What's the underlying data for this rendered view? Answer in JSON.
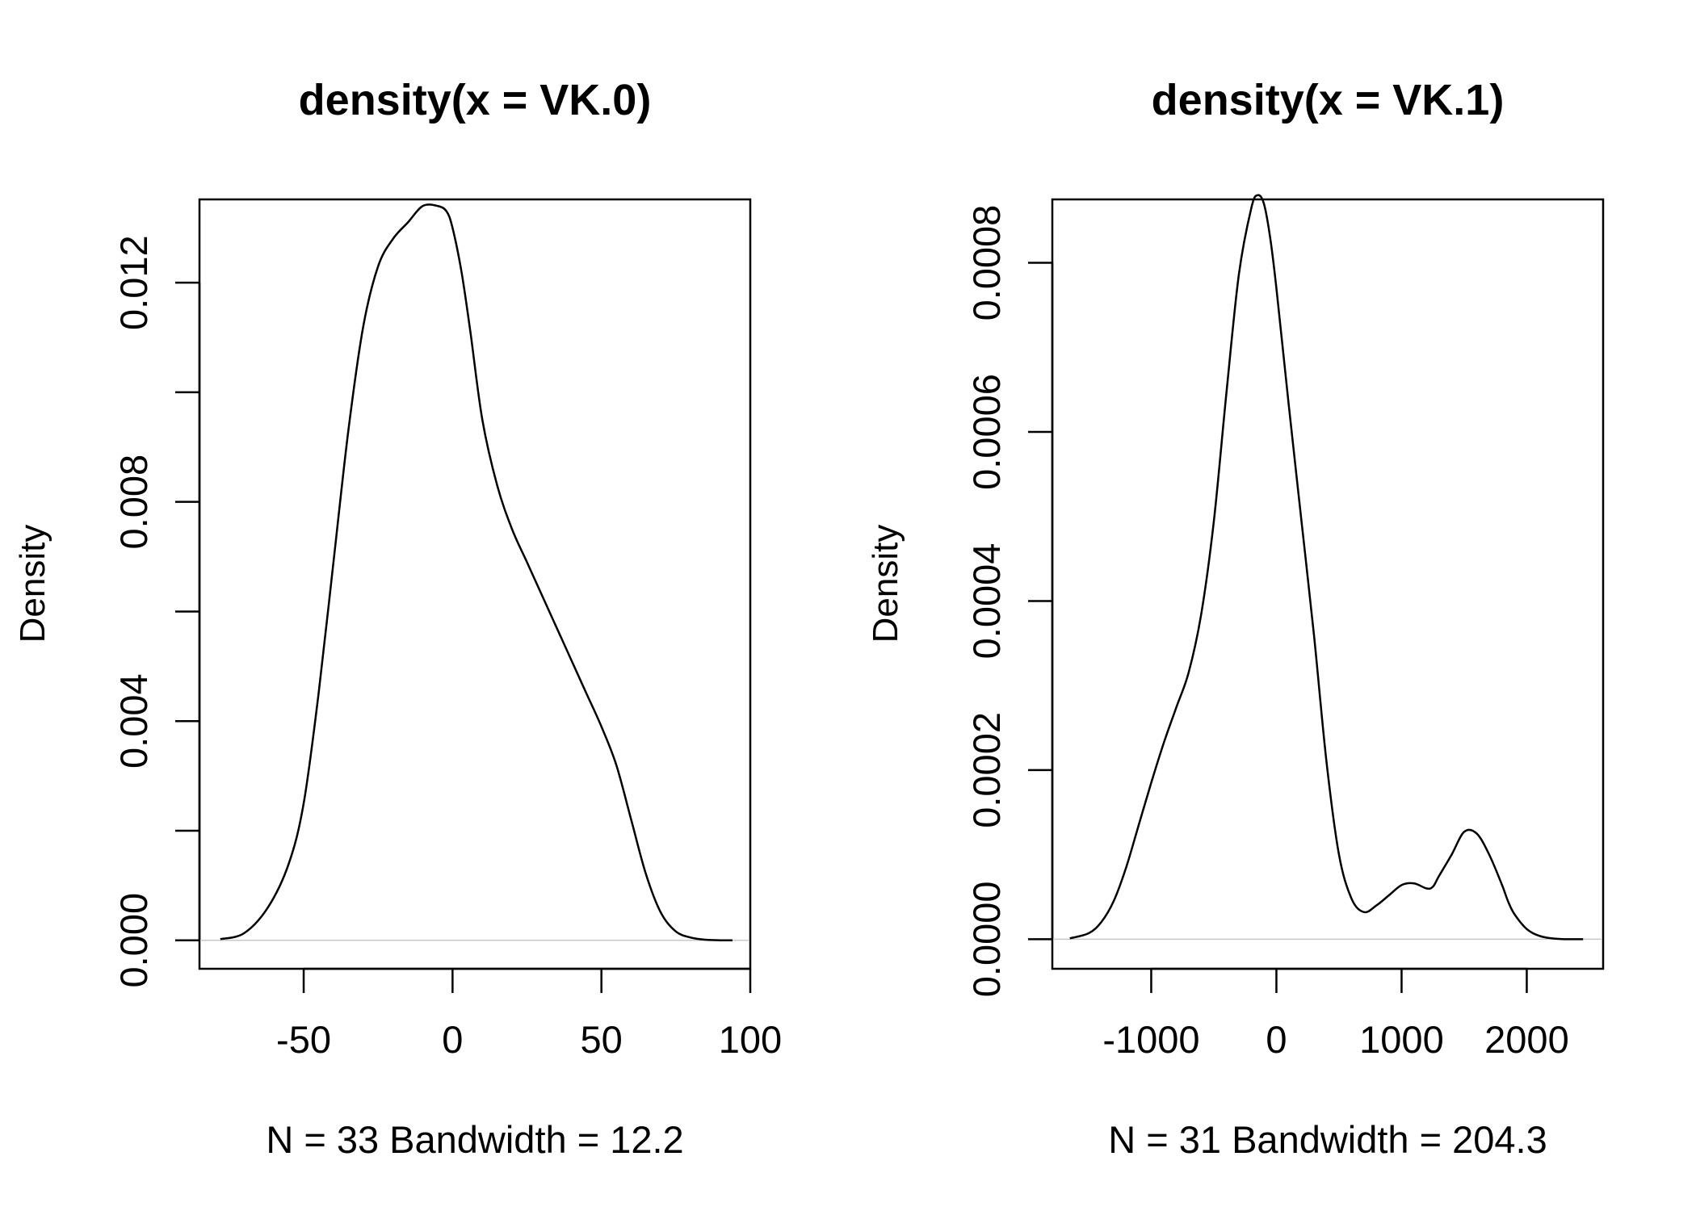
{
  "chart_data": [
    {
      "type": "line",
      "title": "density(x = VK.0)",
      "xlabel": "N = 33   Bandwidth = 12.2",
      "ylabel": "Density",
      "xlim": [
        -85,
        100
      ],
      "ylim": [
        -0.00052,
        0.01352
      ],
      "x_ticks": [
        -50,
        0,
        50,
        100
      ],
      "x_tick_labels": [
        "-50",
        "0",
        "50",
        "100"
      ],
      "y_ticks": [
        0,
        0.002,
        0.004,
        0.006,
        0.008,
        0.01,
        0.012
      ],
      "y_tick_labels": [
        "0.000",
        "",
        "0.004",
        "",
        "0.008",
        "",
        "0.012"
      ],
      "baseline": 0,
      "grid": false,
      "series": [
        {
          "color": "#000000",
          "x": [
            -78,
            -70,
            -62,
            -55,
            -50,
            -45,
            -40,
            -35,
            -30,
            -25,
            -20,
            -15,
            -10,
            -5,
            -2,
            0,
            3,
            6,
            10,
            15,
            20,
            25,
            30,
            35,
            40,
            45,
            50,
            55,
            60,
            65,
            70,
            75,
            80,
            85,
            90,
            94
          ],
          "y": [
            2e-05,
            0.00013,
            0.0006,
            0.0014,
            0.0025,
            0.0045,
            0.0069,
            0.0093,
            0.0112,
            0.0123,
            0.0128,
            0.0131,
            0.0134,
            0.0134,
            0.0133,
            0.013,
            0.0122,
            0.0111,
            0.0095,
            0.0083,
            0.0075,
            0.0069,
            0.0063,
            0.0057,
            0.0051,
            0.0045,
            0.0039,
            0.0032,
            0.0022,
            0.0012,
            0.0005,
            0.00016,
            5e-05,
            1e-05,
            0.0,
            0.0
          ]
        }
      ]
    },
    {
      "type": "line",
      "title": "density(x = VK.1)",
      "xlabel": "N = 31   Bandwidth = 204.3",
      "ylabel": "Density",
      "xlim": [
        -1790,
        2610
      ],
      "ylim": [
        -3.5e-05,
        0.000875
      ],
      "x_ticks": [
        -1000,
        0,
        1000,
        2000
      ],
      "x_tick_labels": [
        "-1000",
        "0",
        "1000",
        "2000"
      ],
      "y_ticks": [
        0,
        0.0002,
        0.0004,
        0.0006,
        0.0008
      ],
      "y_tick_labels": [
        "0.0000",
        "0.0002",
        "0.0004",
        "0.0006",
        "0.0008"
      ],
      "baseline": 0,
      "grid": false,
      "series": [
        {
          "color": "#000000",
          "x": [
            -1650,
            -1500,
            -1400,
            -1300,
            -1200,
            -1100,
            -1000,
            -900,
            -800,
            -700,
            -600,
            -500,
            -400,
            -300,
            -200,
            -150,
            -100,
            -50,
            0,
            100,
            200,
            300,
            400,
            500,
            600,
            700,
            800,
            900,
            1000,
            1100,
            1200,
            1250,
            1300,
            1400,
            1500,
            1600,
            1700,
            1800,
            1850,
            1900,
            2000,
            2100,
            2200,
            2300,
            2400,
            2450
          ],
          "y": [
            1e-06,
            7e-06,
            2e-05,
            4.5e-05,
            8.5e-05,
            0.000135,
            0.000185,
            0.000232,
            0.000274,
            0.000316,
            0.000385,
            0.000494,
            0.000645,
            0.000786,
            0.000865,
            0.00088,
            0.00087,
            0.00083,
            0.00077,
            0.00063,
            0.000495,
            0.00036,
            0.00021,
            0.0001,
            4.8e-05,
            3.2e-05,
            4e-05,
            5.2e-05,
            6.4e-05,
            6.6e-05,
            6e-05,
            6.2e-05,
            7.5e-05,
            0.0001,
            0.000127,
            0.000125,
            0.0001,
            6.5e-05,
            4.5e-05,
            3e-05,
            1.2e-05,
            4e-06,
            1e-06,
            0.0,
            0.0,
            0.0
          ]
        }
      ]
    }
  ]
}
